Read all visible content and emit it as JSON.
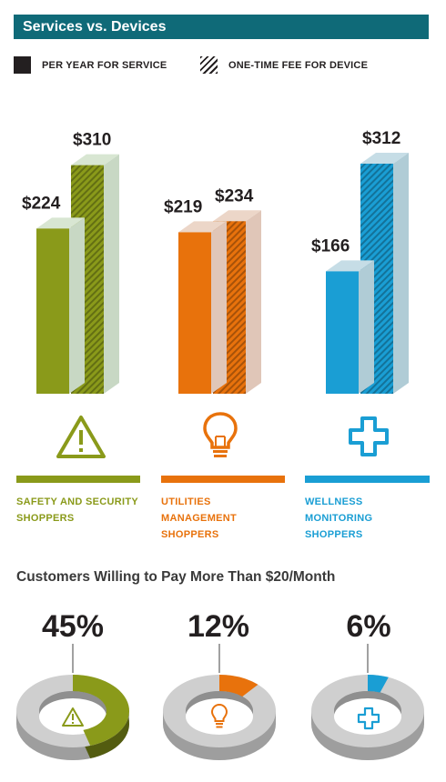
{
  "title": "Services vs. Devices",
  "legend": {
    "service_label": "PER YEAR FOR SERVICE",
    "device_label": "ONE-TIME FEE FOR DEVICE"
  },
  "chart_data": [
    {
      "type": "bar",
      "title": "Services vs. Devices",
      "categories": [
        "SAFETY AND SECURITY SHOPPERS",
        "UTILITIES MANAGEMENT SHOPPERS",
        "WELLNESS MONITORING SHOPPERS"
      ],
      "series": [
        {
          "name": "PER YEAR FOR SERVICE",
          "values": [
            224,
            219,
            166
          ]
        },
        {
          "name": "ONE-TIME FEE FOR DEVICE",
          "values": [
            310,
            234,
            312
          ]
        }
      ],
      "value_labels": {
        "service": [
          "$224",
          "$219",
          "$166"
        ],
        "device": [
          "$310",
          "$234",
          "$312"
        ]
      },
      "category_colors": [
        "#8a9a1a",
        "#e8720c",
        "#1a9ed4"
      ],
      "legend_position": "top",
      "ylim": [
        0,
        320
      ]
    },
    {
      "type": "pie",
      "title": "Customers Willing to Pay More Than $20/Month",
      "categories": [
        "SAFETY AND SECURITY SHOPPERS",
        "UTILITIES MANAGEMENT SHOPPERS",
        "WELLNESS MONITORING SHOPPERS"
      ],
      "values": [
        45,
        12,
        6
      ],
      "labels": [
        "45%",
        "12%",
        "6%"
      ]
    }
  ],
  "categories": [
    {
      "line1": "SAFETY AND SECURITY",
      "line2": "SHOPPERS",
      "line3": "",
      "color": "#8a9a1a",
      "icon": "warning-icon"
    },
    {
      "line1": "UTILITIES",
      "line2": "MANAGEMENT",
      "line3": "SHOPPERS",
      "color": "#e8720c",
      "icon": "lightbulb-icon"
    },
    {
      "line1": "WELLNESS",
      "line2": "MONITORING",
      "line3": "SHOPPERS",
      "color": "#1a9ed4",
      "icon": "plus-icon"
    }
  ],
  "donut_section": {
    "title": "Customers Willing to Pay More Than $20/Month"
  }
}
